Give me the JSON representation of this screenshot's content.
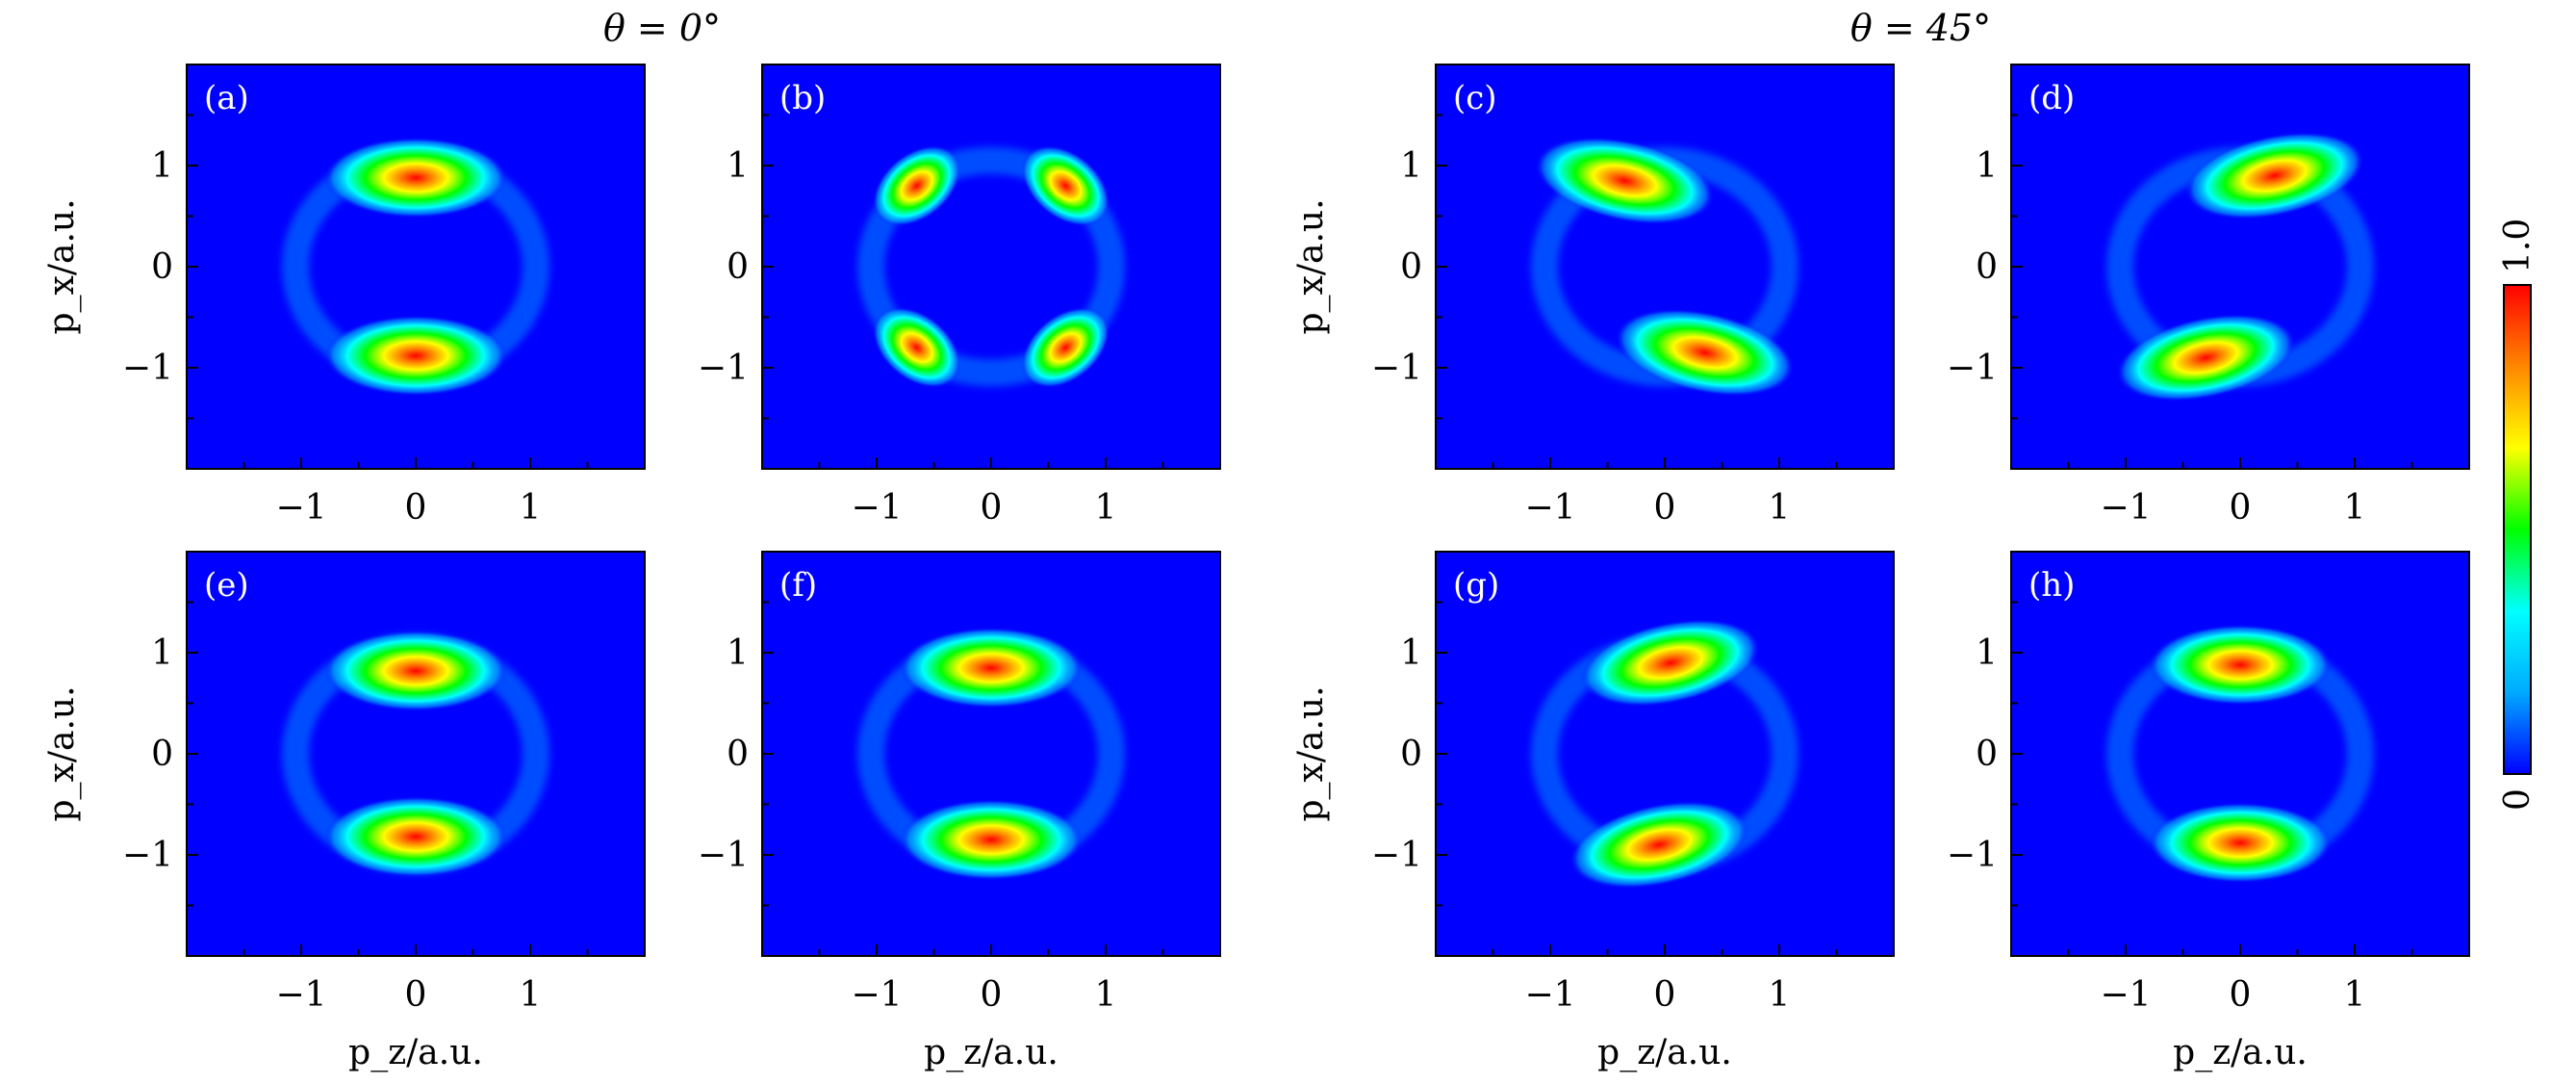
{
  "figure": {
    "headings": [
      "θ = 0°",
      "θ = 45°"
    ],
    "xlabel": "p_z/a.u.",
    "ylabel": "p_x/a.u."
  },
  "colorbar": {
    "min_label": "0",
    "max_label": "1.0",
    "colormap": [
      "#0000ff",
      "#00aaff",
      "#00ffff",
      "#00ff00",
      "#ffff00",
      "#ff8800",
      "#ff0000"
    ]
  },
  "chart_data": [
    {
      "type": "heatmap",
      "label": "(a)",
      "xlabel": "",
      "ylabel": "p_x/a.u.",
      "xlim": [
        -2,
        2
      ],
      "ylim": [
        -2,
        2
      ],
      "xticks": [
        "−1",
        "0",
        "1"
      ],
      "yticks": [
        "1",
        "0",
        "−1"
      ],
      "lobes": [
        {
          "x": 0,
          "y": 0.88,
          "intensity": 1.0
        },
        {
          "x": 0,
          "y": -0.88,
          "intensity": 1.0
        }
      ]
    },
    {
      "type": "heatmap",
      "label": "(b)",
      "xlabel": "",
      "ylabel": "",
      "xlim": [
        -2,
        2
      ],
      "ylim": [
        -2,
        2
      ],
      "xticks": [
        "−1",
        "0",
        "1"
      ],
      "yticks": [
        "1",
        "0",
        "−1"
      ],
      "lobes": [
        {
          "x": -0.65,
          "y": 0.8,
          "intensity": 1.0
        },
        {
          "x": 0.65,
          "y": 0.8,
          "intensity": 1.0
        },
        {
          "x": -0.65,
          "y": -0.8,
          "intensity": 1.0
        },
        {
          "x": 0.65,
          "y": -0.8,
          "intensity": 1.0
        }
      ]
    },
    {
      "type": "heatmap",
      "label": "(c)",
      "xlabel": "",
      "ylabel": "p_x/a.u.",
      "xlim": [
        -2,
        2
      ],
      "ylim": [
        -2,
        2
      ],
      "xticks": [
        "−1",
        "0",
        "1"
      ],
      "yticks": [
        "1",
        "0",
        "−1"
      ],
      "lobes": [
        {
          "x": -0.35,
          "y": 0.85,
          "intensity": 1.0
        },
        {
          "x": 0.35,
          "y": -0.85,
          "intensity": 1.0
        }
      ]
    },
    {
      "type": "heatmap",
      "label": "(d)",
      "xlabel": "",
      "ylabel": "",
      "xlim": [
        -2,
        2
      ],
      "ylim": [
        -2,
        2
      ],
      "xticks": [
        "−1",
        "0",
        "1"
      ],
      "yticks": [
        "1",
        "0",
        "−1"
      ],
      "lobes": [
        {
          "x": 0.3,
          "y": 0.9,
          "intensity": 1.0
        },
        {
          "x": -0.3,
          "y": -0.9,
          "intensity": 1.0
        }
      ]
    },
    {
      "type": "heatmap",
      "label": "(e)",
      "xlabel": "p_z/a.u.",
      "ylabel": "p_x/a.u.",
      "xlim": [
        -2,
        2
      ],
      "ylim": [
        -2,
        2
      ],
      "xticks": [
        "−1",
        "0",
        "1"
      ],
      "yticks": [
        "1",
        "0",
        "−1"
      ],
      "lobes": [
        {
          "x": 0,
          "y": 0.82,
          "intensity": 1.0
        },
        {
          "x": 0,
          "y": -0.82,
          "intensity": 1.0
        }
      ]
    },
    {
      "type": "heatmap",
      "label": "(f)",
      "xlabel": "p_z/a.u.",
      "ylabel": "",
      "xlim": [
        -2,
        2
      ],
      "ylim": [
        -2,
        2
      ],
      "xticks": [
        "−1",
        "0",
        "1"
      ],
      "yticks": [
        "1",
        "0",
        "−1"
      ],
      "lobes": [
        {
          "x": 0,
          "y": 0.85,
          "intensity": 1.0
        },
        {
          "x": 0,
          "y": -0.85,
          "intensity": 1.0
        }
      ]
    },
    {
      "type": "heatmap",
      "label": "(g)",
      "xlabel": "p_z/a.u.",
      "ylabel": "p_x/a.u.",
      "xlim": [
        -2,
        2
      ],
      "ylim": [
        -2,
        2
      ],
      "xticks": [
        "−1",
        "0",
        "1"
      ],
      "yticks": [
        "1",
        "0",
        "−1"
      ],
      "lobes": [
        {
          "x": 0.05,
          "y": 0.9,
          "intensity": 1.0
        },
        {
          "x": -0.05,
          "y": -0.9,
          "intensity": 1.0
        }
      ]
    },
    {
      "type": "heatmap",
      "label": "(h)",
      "xlabel": "p_z/a.u.",
      "ylabel": "",
      "xlim": [
        -2,
        2
      ],
      "ylim": [
        -2,
        2
      ],
      "xticks": [
        "−1",
        "0",
        "1"
      ],
      "yticks": [
        "1",
        "0",
        "−1"
      ],
      "lobes": [
        {
          "x": 0,
          "y": 0.88,
          "intensity": 1.0
        },
        {
          "x": 0,
          "y": -0.88,
          "intensity": 1.0
        }
      ]
    }
  ]
}
